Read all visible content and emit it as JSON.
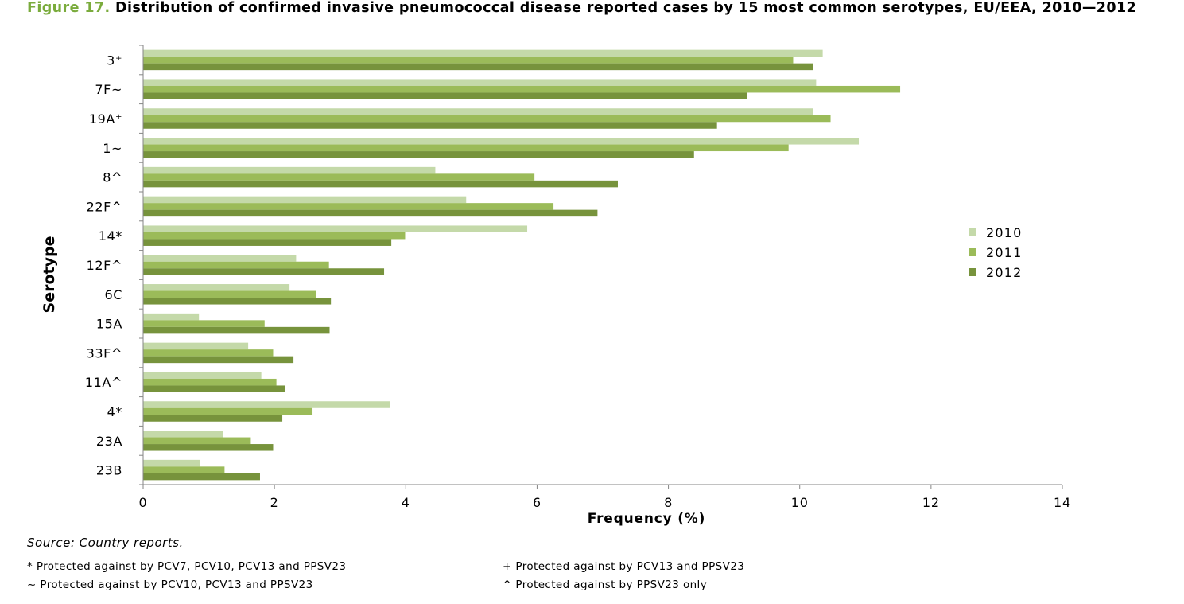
{
  "figure": {
    "number": "Figure 17.",
    "title": "Distribution of confirmed invasive pneumococcal disease reported cases by 15 most common serotypes, EU/EEA, 2010—2012"
  },
  "chart_data": {
    "type": "bar",
    "orientation": "horizontal",
    "xlabel": "Frequency (%)",
    "ylabel": "Serotype",
    "xlim": [
      0,
      14
    ],
    "xticks": [
      0,
      2,
      4,
      6,
      8,
      10,
      12,
      14
    ],
    "grid": false,
    "legend_position": "right",
    "categories": [
      "3⁺",
      "7F~",
      "19A⁺",
      "1~",
      "8^",
      "22F^",
      "14*",
      "12F^",
      "6C",
      "15A",
      "33F^",
      "11A^",
      "4*",
      "23A",
      "23B"
    ],
    "series": [
      {
        "name": "2010",
        "color": "#c4d9a9",
        "values": [
          10.35,
          10.25,
          10.2,
          10.9,
          4.45,
          4.92,
          5.85,
          2.33,
          2.23,
          0.85,
          1.6,
          1.8,
          3.76,
          1.22,
          0.87
        ]
      },
      {
        "name": "2011",
        "color": "#9bbb59",
        "values": [
          9.9,
          11.53,
          10.47,
          9.83,
          5.96,
          6.25,
          3.99,
          2.83,
          2.63,
          1.85,
          1.98,
          2.03,
          2.58,
          1.64,
          1.24
        ]
      },
      {
        "name": "2012",
        "color": "#77933c",
        "values": [
          10.2,
          9.2,
          8.74,
          8.39,
          7.23,
          6.92,
          3.78,
          3.67,
          2.86,
          2.84,
          2.29,
          2.16,
          2.12,
          1.98,
          1.78
        ]
      }
    ]
  },
  "source": "Source: Country reports.",
  "notes": [
    "* Protected against by PCV7, PCV10, PCV13 and PPSV23",
    "+ Protected against by PCV13 and PPSV23",
    "~ Protected against by PCV10, PCV13 and PPSV23",
    "^ Protected against by PPSV23 only"
  ]
}
